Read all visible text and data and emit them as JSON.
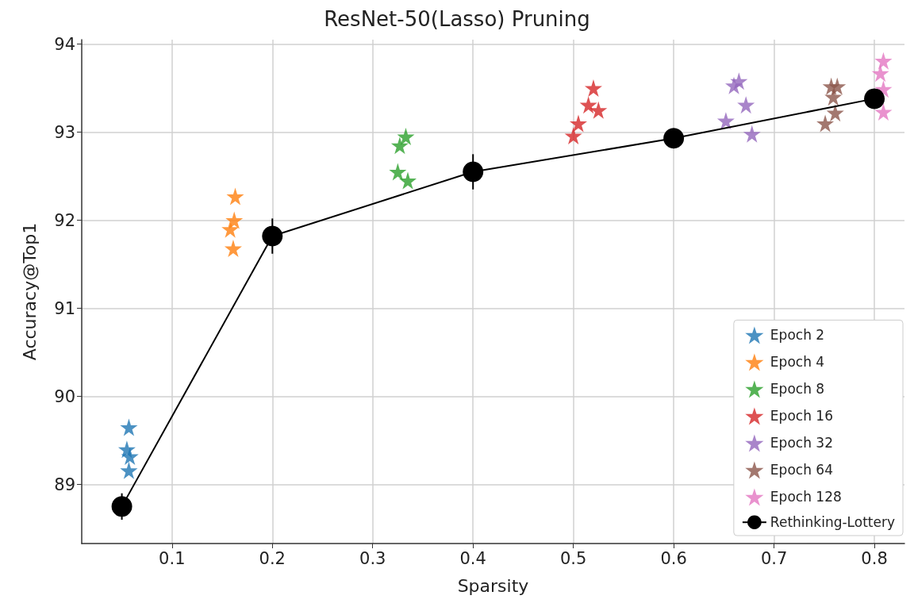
{
  "chart_data": {
    "type": "scatter",
    "title": "ResNet-50(Lasso) Pruning",
    "xlabel": "Sparsity",
    "ylabel": "Accuracy@Top1",
    "xlim": [
      0.01,
      0.83
    ],
    "xticks": [
      0.1,
      0.2,
      0.3,
      0.4,
      0.5,
      0.6,
      0.7,
      0.8
    ],
    "ylim": [
      88.33,
      94.05
    ],
    "yticks": [
      89,
      90,
      91,
      92,
      93,
      94
    ],
    "grid": true,
    "legend": "bottom right",
    "marker": "star",
    "series": [
      {
        "name": "Epoch 2",
        "color": "#1f77b4",
        "x": [
          0.057,
          0.055,
          0.058,
          0.057
        ],
        "values": [
          89.65,
          89.4,
          89.32,
          89.16
        ]
      },
      {
        "name": "Epoch 4",
        "color": "#ff7f0e",
        "x": [
          0.163,
          0.162,
          0.158,
          0.161
        ],
        "values": [
          92.27,
          92.0,
          91.9,
          91.68
        ]
      },
      {
        "name": "Epoch 8",
        "color": "#2ca02c",
        "x": [
          0.333,
          0.327,
          0.325,
          0.335
        ],
        "values": [
          92.95,
          92.85,
          92.55,
          92.45
        ]
      },
      {
        "name": "Epoch 16",
        "color": "#d62728",
        "x": [
          0.52,
          0.515,
          0.525,
          0.505,
          0.5
        ],
        "values": [
          93.5,
          93.31,
          93.25,
          93.1,
          92.96
        ]
      },
      {
        "name": "Epoch 32",
        "color": "#9467bd",
        "x": [
          0.665,
          0.66,
          0.672,
          0.652,
          0.678
        ],
        "values": [
          93.58,
          93.53,
          93.31,
          93.13,
          92.98
        ]
      },
      {
        "name": "Epoch 64",
        "color": "#8c564b",
        "x": [
          0.757,
          0.763,
          0.759,
          0.761,
          0.751
        ],
        "values": [
          93.52,
          93.52,
          93.4,
          93.22,
          93.1
        ]
      },
      {
        "name": "Epoch 128",
        "color": "#e377c2",
        "x": [
          0.809,
          0.806,
          0.809,
          0.809
        ],
        "values": [
          93.81,
          93.67,
          93.49,
          93.23
        ]
      },
      {
        "name": "Rethinking-Lottery",
        "color": "#000000",
        "type": "line",
        "marker": "circle",
        "x": [
          0.05,
          0.2,
          0.4,
          0.6,
          0.8
        ],
        "values": [
          88.75,
          91.82,
          92.55,
          92.93,
          93.38
        ],
        "errors": [
          0.15,
          0.2,
          0.2,
          0.05,
          0.1
        ]
      }
    ]
  }
}
